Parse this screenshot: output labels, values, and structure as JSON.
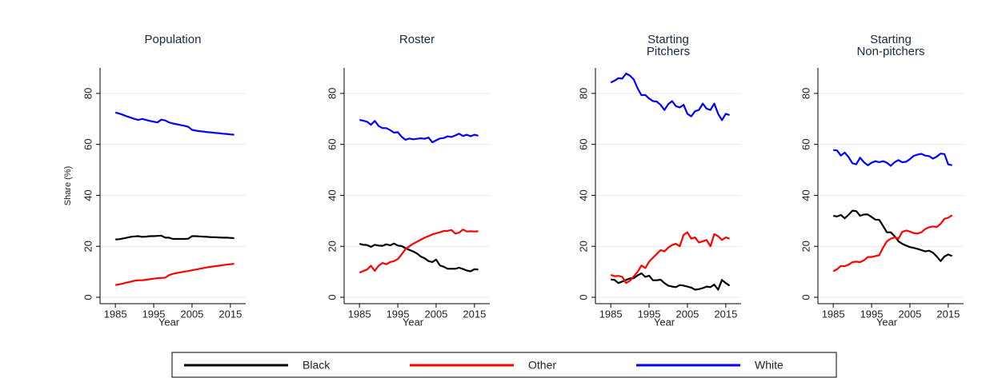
{
  "chart_data": [
    {
      "type": "line",
      "title": [
        "Population"
      ],
      "xlabel": "Year",
      "ylabel": "Share (%)",
      "legend": "bottom",
      "grid": true,
      "xlim": [
        1981,
        2019
      ],
      "xticks": [
        1985,
        1995,
        2005,
        2015
      ],
      "ylim": [
        -2.5,
        90
      ],
      "yticks": [
        0,
        20,
        40,
        60,
        80
      ],
      "x": [
        1985,
        1986,
        1987,
        1988,
        1989,
        1990,
        1991,
        1992,
        1993,
        1994,
        1995,
        1996,
        1997,
        1998,
        1999,
        2000,
        2001,
        2002,
        2003,
        2004,
        2005,
        2006,
        2007,
        2008,
        2009,
        2010,
        2011,
        2012,
        2013,
        2014,
        2015,
        2016
      ],
      "series": [
        {
          "name": "Black",
          "color": "#000000",
          "values": [
            22.7,
            22.8,
            23.1,
            23.4,
            23.7,
            23.9,
            24.0,
            23.7,
            23.8,
            24.0,
            24.0,
            24.1,
            24.2,
            23.4,
            23.4,
            22.9,
            22.9,
            22.9,
            22.9,
            23.0,
            24.0,
            24.0,
            23.9,
            23.8,
            23.7,
            23.6,
            23.6,
            23.5,
            23.4,
            23.4,
            23.3,
            23.2
          ]
        },
        {
          "name": "Other",
          "color": "#ff0000",
          "values": [
            4.8,
            5.1,
            5.4,
            5.8,
            6.1,
            6.5,
            6.7,
            6.7,
            6.9,
            7.1,
            7.3,
            7.5,
            7.6,
            7.7,
            8.7,
            9.2,
            9.5,
            9.8,
            10.1,
            10.3,
            10.6,
            10.9,
            11.2,
            11.5,
            11.8,
            12.0,
            12.2,
            12.4,
            12.6,
            12.8,
            13.0,
            13.1
          ]
        },
        {
          "name": "White",
          "color": "#0000ff",
          "values": [
            72.5,
            72.1,
            71.6,
            71.0,
            70.5,
            70.0,
            69.6,
            70.0,
            69.6,
            69.2,
            68.9,
            68.6,
            69.7,
            69.4,
            68.6,
            68.2,
            67.9,
            67.6,
            67.3,
            66.9,
            65.7,
            65.4,
            65.2,
            65.0,
            64.8,
            64.7,
            64.5,
            64.4,
            64.2,
            64.1,
            63.9,
            63.8
          ]
        }
      ]
    },
    {
      "type": "line",
      "title": [
        "Roster"
      ],
      "xlabel": "Year",
      "grid": true,
      "xlim": [
        1981,
        2019
      ],
      "xticks": [
        1985,
        1995,
        2005,
        2015
      ],
      "ylim": [
        -2.5,
        90
      ],
      "yticks": [
        0,
        20,
        40,
        60,
        80
      ],
      "x": [
        1985,
        1986,
        1987,
        1988,
        1989,
        1990,
        1991,
        1992,
        1993,
        1994,
        1995,
        1996,
        1997,
        1998,
        1999,
        2000,
        2001,
        2002,
        2003,
        2004,
        2005,
        2006,
        2007,
        2008,
        2009,
        2010,
        2011,
        2012,
        2013,
        2014,
        2015,
        2016
      ],
      "series": [
        {
          "name": "Black",
          "color": "#000000",
          "values": [
            21.0,
            20.6,
            20.5,
            19.8,
            20.6,
            20.3,
            20.2,
            20.8,
            20.4,
            21.1,
            20.3,
            20.1,
            19.3,
            18.6,
            18.0,
            17.2,
            16.0,
            15.3,
            14.2,
            13.8,
            14.8,
            12.5,
            12.0,
            11.2,
            11.2,
            11.2,
            11.6,
            11.1,
            10.5,
            10.2,
            11.0,
            10.9
          ]
        },
        {
          "name": "Other",
          "color": "#ff0000",
          "values": [
            9.7,
            10.3,
            10.9,
            12.4,
            10.4,
            12.4,
            13.5,
            13.0,
            13.8,
            14.2,
            15.0,
            16.8,
            18.9,
            20.0,
            21.0,
            21.8,
            22.6,
            23.4,
            24.0,
            24.7,
            25.1,
            25.5,
            26.0,
            26.1,
            26.4,
            25.0,
            25.4,
            26.6,
            25.8,
            25.9,
            25.8,
            25.9
          ]
        },
        {
          "name": "White",
          "color": "#0000ff",
          "values": [
            69.6,
            69.3,
            68.9,
            67.7,
            69.2,
            67.2,
            66.4,
            66.4,
            65.6,
            64.6,
            64.8,
            63.0,
            61.8,
            62.3,
            62.0,
            62.2,
            62.4,
            62.2,
            62.7,
            60.8,
            61.6,
            62.3,
            62.5,
            63.2,
            62.9,
            63.5,
            64.2,
            63.3,
            63.8,
            63.2,
            63.8,
            63.4
          ]
        }
      ]
    },
    {
      "type": "line",
      "title": [
        "Starting",
        "Pitchers"
      ],
      "xlabel": "Year",
      "grid": true,
      "xlim": [
        1981,
        2019
      ],
      "xticks": [
        1985,
        1995,
        2005,
        2015
      ],
      "ylim": [
        -2.5,
        90
      ],
      "yticks": [
        0,
        20,
        40,
        60,
        80
      ],
      "x": [
        1985,
        1986,
        1987,
        1988,
        1989,
        1990,
        1991,
        1992,
        1993,
        1994,
        1995,
        1996,
        1997,
        1998,
        1999,
        2000,
        2001,
        2002,
        2003,
        2004,
        2005,
        2006,
        2007,
        2008,
        2009,
        2010,
        2011,
        2012,
        2013,
        2014,
        2015,
        2016
      ],
      "series": [
        {
          "name": "Black",
          "color": "#000000",
          "values": [
            7.0,
            6.8,
            5.6,
            6.2,
            6.8,
            7.4,
            7.5,
            8.6,
            9.4,
            8.0,
            8.5,
            6.7,
            6.7,
            6.9,
            5.6,
            4.6,
            4.2,
            4.0,
            4.8,
            4.6,
            4.2,
            3.8,
            3.0,
            3.2,
            3.6,
            4.2,
            4.0,
            5.0,
            3.0,
            6.8,
            5.6,
            4.6
          ]
        },
        {
          "name": "Other",
          "color": "#ff0000",
          "values": [
            8.8,
            8.3,
            8.4,
            8.0,
            5.6,
            6.5,
            8.2,
            10.0,
            12.5,
            11.5,
            14.0,
            15.5,
            17.0,
            18.5,
            18.0,
            19.5,
            20.5,
            21.0,
            20.0,
            24.5,
            25.5,
            23.0,
            23.5,
            21.5,
            22.0,
            22.5,
            20.0,
            24.8,
            24.0,
            22.5,
            23.5,
            23.0
          ]
        },
        {
          "name": "White",
          "color": "#0000ff",
          "values": [
            84.3,
            85.0,
            86.0,
            85.8,
            87.8,
            87.0,
            85.5,
            82.0,
            79.3,
            79.4,
            78.0,
            77.0,
            76.8,
            75.5,
            73.5,
            75.8,
            77.0,
            75.0,
            74.5,
            75.5,
            72.0,
            71.0,
            73.0,
            73.5,
            76.0,
            74.0,
            73.5,
            76.0,
            72.0,
            69.5,
            72.0,
            71.5
          ]
        }
      ]
    },
    {
      "type": "line",
      "title": [
        "Starting",
        "Non-pitchers"
      ],
      "xlabel": "Year",
      "grid": true,
      "xlim": [
        1981,
        2019
      ],
      "xticks": [
        1985,
        1995,
        2005,
        2015
      ],
      "ylim": [
        -2.5,
        90
      ],
      "yticks": [
        0,
        20,
        40,
        60,
        80
      ],
      "x": [
        1985,
        1986,
        1987,
        1988,
        1989,
        1990,
        1991,
        1992,
        1993,
        1994,
        1995,
        1996,
        1997,
        1998,
        1999,
        2000,
        2001,
        2002,
        2003,
        2004,
        2005,
        2006,
        2007,
        2008,
        2009,
        2010,
        2011,
        2012,
        2013,
        2014,
        2015,
        2016
      ],
      "series": [
        {
          "name": "Black",
          "color": "#000000",
          "values": [
            32.0,
            31.7,
            32.3,
            31.0,
            32.4,
            34.0,
            33.8,
            32.0,
            32.5,
            32.5,
            31.5,
            30.5,
            30.4,
            28.0,
            25.5,
            25.5,
            24.0,
            22.0,
            21.0,
            20.3,
            19.7,
            19.4,
            19.0,
            18.5,
            18.0,
            18.3,
            17.5,
            16.0,
            14.2,
            16.0,
            16.8,
            16.2
          ]
        },
        {
          "name": "Other",
          "color": "#ff0000",
          "values": [
            10.2,
            11.0,
            12.3,
            12.2,
            12.8,
            13.8,
            14.0,
            13.8,
            14.5,
            15.8,
            15.8,
            16.2,
            16.5,
            19.5,
            22.0,
            23.0,
            23.5,
            23.0,
            25.7,
            26.2,
            25.8,
            25.2,
            25.0,
            25.5,
            26.8,
            27.5,
            27.8,
            27.6,
            28.8,
            30.8,
            31.2,
            32.2
          ]
        },
        {
          "name": "White",
          "color": "#0000ff",
          "values": [
            57.8,
            57.6,
            55.6,
            56.8,
            55.0,
            52.6,
            52.2,
            54.8,
            53.0,
            51.8,
            52.8,
            53.4,
            53.0,
            53.4,
            52.8,
            51.6,
            53.0,
            53.8,
            53.0,
            53.2,
            54.2,
            55.5,
            56.0,
            56.3,
            55.6,
            55.4,
            54.4,
            55.2,
            56.4,
            56.2,
            52.2,
            51.8
          ]
        }
      ]
    }
  ]
}
